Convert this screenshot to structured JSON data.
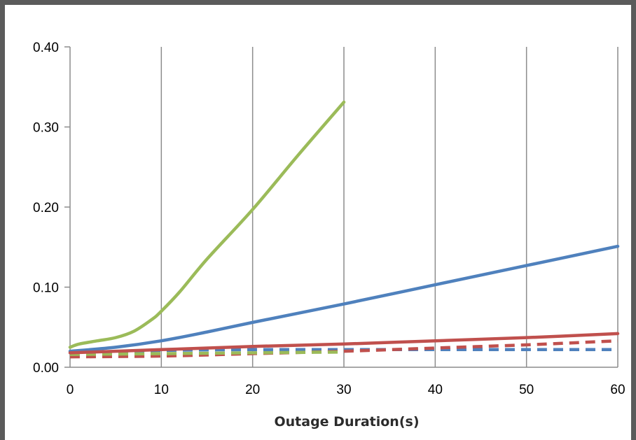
{
  "chart_data": {
    "type": "line",
    "title": "",
    "xlabel": "Outage Duration(s)",
    "ylabel": "",
    "xlim": [
      0,
      60
    ],
    "ylim": [
      0,
      0.4
    ],
    "x_ticks": [
      "0",
      "10",
      "20",
      "30",
      "40",
      "50",
      "60"
    ],
    "y_ticks": [
      "0.00",
      "0.10",
      "0.20",
      "0.30",
      "0.40"
    ],
    "grid": "vertical",
    "legend": "none",
    "series": [
      {
        "color": "#4f81bd",
        "style": "solid",
        "x": [
          0,
          5,
          10,
          15,
          20,
          30,
          40,
          50,
          60
        ],
        "y": [
          0.02,
          0.025,
          0.033,
          0.044,
          0.056,
          0.079,
          0.103,
          0.127,
          0.151
        ]
      },
      {
        "color": "#c0504d",
        "style": "solid",
        "x": [
          0,
          10,
          20,
          30,
          40,
          50,
          60
        ],
        "y": [
          0.018,
          0.022,
          0.026,
          0.029,
          0.033,
          0.037,
          0.042
        ]
      },
      {
        "color": "#9bbb59",
        "style": "solid",
        "x": [
          0,
          1,
          3,
          5,
          7,
          9,
          10,
          12,
          15,
          20,
          25,
          30
        ],
        "y": [
          0.025,
          0.029,
          0.033,
          0.037,
          0.045,
          0.06,
          0.07,
          0.094,
          0.135,
          0.197,
          0.265,
          0.331
        ]
      },
      {
        "color": "#4f81bd",
        "style": "dashed",
        "x": [
          0,
          10,
          20,
          30,
          40,
          50,
          60
        ],
        "y": [
          0.018,
          0.021,
          0.022,
          0.022,
          0.022,
          0.022,
          0.022
        ]
      },
      {
        "color": "#c0504d",
        "style": "dashed",
        "x": [
          0,
          10,
          20,
          30,
          40,
          50,
          60
        ],
        "y": [
          0.013,
          0.014,
          0.017,
          0.02,
          0.024,
          0.028,
          0.033
        ]
      },
      {
        "color": "#9bbb59",
        "style": "dashed",
        "x": [
          0,
          10,
          20,
          30
        ],
        "y": [
          0.016,
          0.017,
          0.018,
          0.019
        ]
      }
    ]
  }
}
